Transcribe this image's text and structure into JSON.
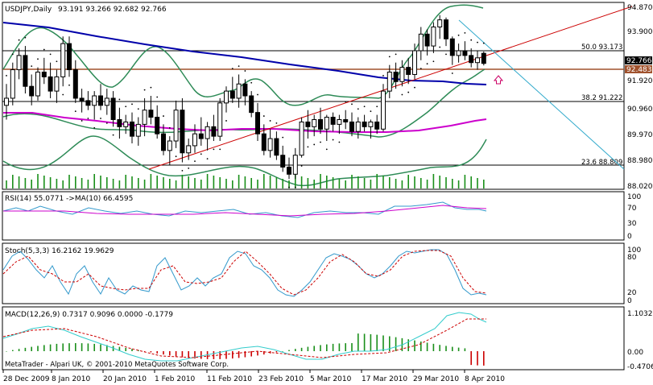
{
  "header": {
    "symbol": "USDJPY,Daily",
    "ohlc": "93.191 93.266 92.682 92.766"
  },
  "price_scale": {
    "ticks": [
      "94.870",
      "93.900",
      "92.766",
      "92.483",
      "91.920",
      "90.960",
      "89.970",
      "88.980",
      "88.020"
    ],
    "current_bid": "92.766",
    "current_ask": "92.483"
  },
  "fib_levels": [
    {
      "label": "50.0 93.173",
      "value": 93.173
    },
    {
      "label": "38.2 91.222",
      "value": 91.222
    },
    {
      "label": "23.6 88.809",
      "value": 88.809
    }
  ],
  "rsi": {
    "label": "RSI(14) 55.0771 ->MA(10) 66.4595",
    "ticks": [
      "100",
      "70",
      "30",
      "0"
    ]
  },
  "stoch": {
    "label": "Stoch(5,3,3) 16.2162 19.9629",
    "ticks": [
      "100",
      "80",
      "20",
      "0"
    ]
  },
  "macd": {
    "label": "MACD(12,26,9) 0.7317 0.9096 0.0000 -0.1779",
    "ticks": [
      "1.1032",
      "0.00",
      "-0.4706"
    ]
  },
  "footer": {
    "credit": "MetaTrader - Alpari UK, © 2001-2010 MetaQuotes Software Corp."
  },
  "time_axis": [
    "28 Dec 2009",
    "8 Jan 2010",
    "20 Jan 2010",
    "1 Feb 2010",
    "11 Feb 2010",
    "23 Feb 2010",
    "5 Mar 2010",
    "17 Mar 2010",
    "29 Mar 2010",
    "8 Apr 2010"
  ],
  "chart_data": {
    "type": "candlestick",
    "title": "USDJPY,Daily",
    "ylim": [
      87.5,
      95.3
    ],
    "candles": [
      [
        91.0,
        91.9,
        90.4,
        91.3
      ],
      [
        91.3,
        92.8,
        91.0,
        92.5
      ],
      [
        92.5,
        93.4,
        92.1,
        93.1
      ],
      [
        93.1,
        93.5,
        91.5,
        91.8
      ],
      [
        91.8,
        92.3,
        91.0,
        91.4
      ],
      [
        91.4,
        92.6,
        91.2,
        92.4
      ],
      [
        92.4,
        93.0,
        91.9,
        92.2
      ],
      [
        92.2,
        92.8,
        91.3,
        91.6
      ],
      [
        91.6,
        92.5,
        91.1,
        92.2
      ],
      [
        92.2,
        93.9,
        91.8,
        93.6
      ],
      [
        93.6,
        93.9,
        92.2,
        92.5
      ],
      [
        92.5,
        92.9,
        91.1,
        91.3
      ],
      [
        91.3,
        91.7,
        90.7,
        91.2
      ],
      [
        91.2,
        91.6,
        90.8,
        91.0
      ],
      [
        91.0,
        91.6,
        90.4,
        91.4
      ],
      [
        91.4,
        91.9,
        90.8,
        91.0
      ],
      [
        91.0,
        91.7,
        90.6,
        91.3
      ],
      [
        91.3,
        91.6,
        90.1,
        90.4
      ],
      [
        90.4,
        90.9,
        89.6,
        90.1
      ],
      [
        90.1,
        90.6,
        89.8,
        90.3
      ],
      [
        90.3,
        90.7,
        89.4,
        89.7
      ],
      [
        89.7,
        90.5,
        89.3,
        90.2
      ],
      [
        90.2,
        91.3,
        89.7,
        90.8
      ],
      [
        90.8,
        91.4,
        90.2,
        90.5
      ],
      [
        90.5,
        91.0,
        89.6,
        89.8
      ],
      [
        89.8,
        90.2,
        88.9,
        89.1
      ],
      [
        89.1,
        89.7,
        88.5,
        89.5
      ],
      [
        89.5,
        91.2,
        89.2,
        90.8
      ],
      [
        90.8,
        91.3,
        88.6,
        89.0
      ],
      [
        89.0,
        89.6,
        88.7,
        89.3
      ],
      [
        89.3,
        90.2,
        89.0,
        89.8
      ],
      [
        89.8,
        90.5,
        89.3,
        89.6
      ],
      [
        89.6,
        90.3,
        89.1,
        90.1
      ],
      [
        90.1,
        90.6,
        89.5,
        89.7
      ],
      [
        89.7,
        91.3,
        89.5,
        91.1
      ],
      [
        91.1,
        91.8,
        90.7,
        91.6
      ],
      [
        91.6,
        92.2,
        91.1,
        91.3
      ],
      [
        91.3,
        92.3,
        90.9,
        91.9
      ],
      [
        91.9,
        92.1,
        91.0,
        91.4
      ],
      [
        91.4,
        91.6,
        90.5,
        90.7
      ],
      [
        90.7,
        91.1,
        89.5,
        89.8
      ],
      [
        89.8,
        90.2,
        88.9,
        89.1
      ],
      [
        89.1,
        90.0,
        88.8,
        89.6
      ],
      [
        89.6,
        89.9,
        88.7,
        88.9
      ],
      [
        88.9,
        89.3,
        88.2,
        88.4
      ],
      [
        88.4,
        88.8,
        87.9,
        88.1
      ],
      [
        88.1,
        89.2,
        87.9,
        88.9
      ],
      [
        88.9,
        90.5,
        88.8,
        90.3
      ],
      [
        90.3,
        90.8,
        89.6,
        90.1
      ],
      [
        90.1,
        90.6,
        89.7,
        90.4
      ],
      [
        90.4,
        90.9,
        89.8,
        90.0
      ],
      [
        90.0,
        90.6,
        89.5,
        90.5
      ],
      [
        90.5,
        90.7,
        89.9,
        90.2
      ],
      [
        90.2,
        90.6,
        89.8,
        90.4
      ],
      [
        90.4,
        90.8,
        90.0,
        90.3
      ],
      [
        90.3,
        90.7,
        89.7,
        89.9
      ],
      [
        89.9,
        90.5,
        89.6,
        90.3
      ],
      [
        90.3,
        90.6,
        89.9,
        90.1
      ],
      [
        90.1,
        90.4,
        89.6,
        90.3
      ],
      [
        90.3,
        90.6,
        89.8,
        90.0
      ],
      [
        90.0,
        91.9,
        89.9,
        91.6
      ],
      [
        91.6,
        92.7,
        91.3,
        92.4
      ],
      [
        92.4,
        92.8,
        91.7,
        92.0
      ],
      [
        92.0,
        92.9,
        91.8,
        92.6
      ],
      [
        92.6,
        93.0,
        91.9,
        92.3
      ],
      [
        92.3,
        93.6,
        92.1,
        93.3
      ],
      [
        93.3,
        94.3,
        92.9,
        94.0
      ],
      [
        94.0,
        94.2,
        93.1,
        93.5
      ],
      [
        93.5,
        94.5,
        93.2,
        94.3
      ],
      [
        94.3,
        94.8,
        93.8,
        94.6
      ],
      [
        94.6,
        94.7,
        93.5,
        93.8
      ],
      [
        93.8,
        93.9,
        92.7,
        93.1
      ],
      [
        93.1,
        93.6,
        92.8,
        93.3
      ],
      [
        93.3,
        93.7,
        92.9,
        93.1
      ],
      [
        93.1,
        93.4,
        92.6,
        92.8
      ],
      [
        92.8,
        93.3,
        92.5,
        93.0
      ],
      [
        93.191,
        93.266,
        92.682,
        92.766
      ]
    ]
  }
}
